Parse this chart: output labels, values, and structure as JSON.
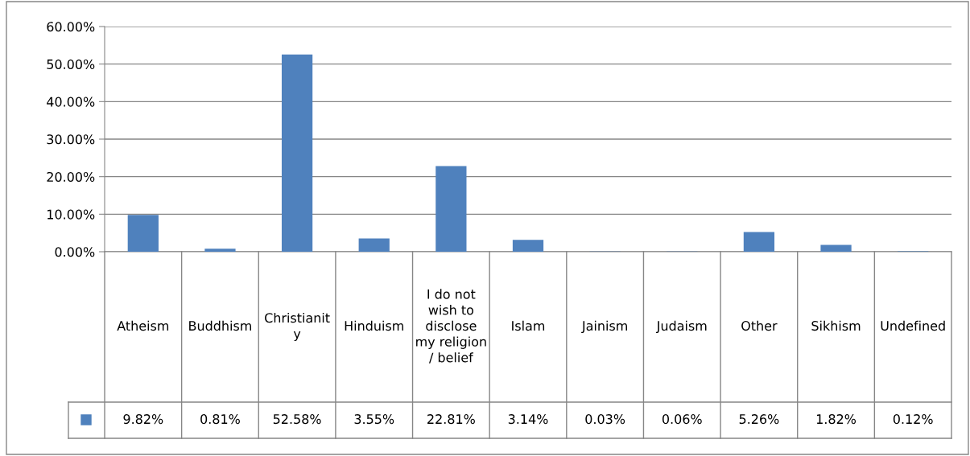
{
  "chart_data": {
    "type": "bar",
    "categories": [
      "Atheism",
      "Buddhism",
      "Christianity",
      "Hinduism",
      "I do not wish to disclose my religion / belief",
      "Islam",
      "Jainism",
      "Judaism",
      "Other",
      "Sikhism",
      "Undefined"
    ],
    "series": [
      {
        "color": "#4f81bd",
        "values": [
          9.82,
          0.81,
          52.58,
          3.55,
          22.81,
          3.14,
          0.03,
          0.06,
          5.26,
          1.82,
          0.12
        ],
        "value_labels": [
          "9.82%",
          "0.81%",
          "52.58%",
          "3.55%",
          "22.81%",
          "3.14%",
          "0.03%",
          "0.06%",
          "5.26%",
          "1.82%",
          "0.12%"
        ]
      }
    ],
    "ylim": [
      0,
      60
    ],
    "yticks": [
      {
        "value": 0,
        "label": "0.00%"
      },
      {
        "value": 10,
        "label": "10.00%"
      },
      {
        "value": 20,
        "label": "20.00%"
      },
      {
        "value": 30,
        "label": "30.00%"
      },
      {
        "value": 40,
        "label": "40.00%"
      },
      {
        "value": 50,
        "label": "50.00%"
      },
      {
        "value": 60,
        "label": "60.00%"
      }
    ],
    "grid": "y"
  }
}
